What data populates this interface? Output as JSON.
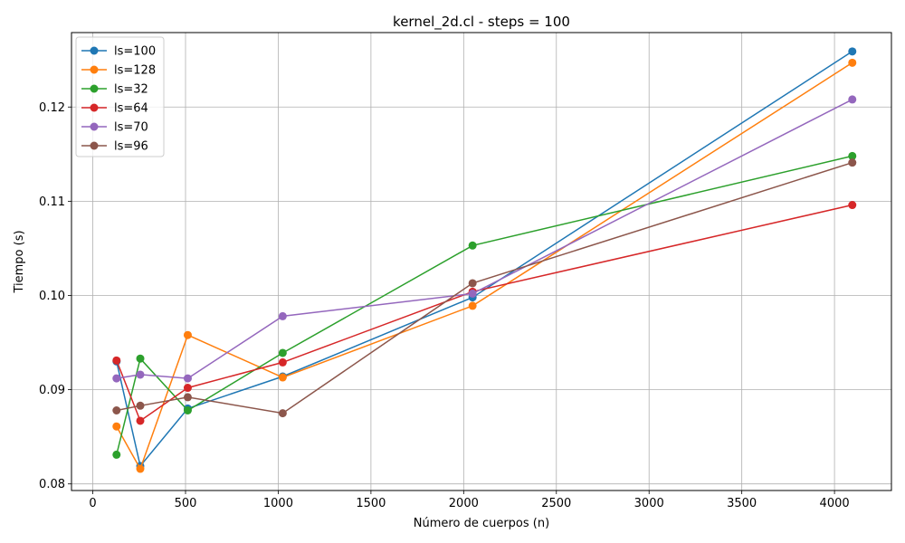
{
  "chart_data": {
    "type": "line",
    "title": "kernel_2d.cl - steps = 100",
    "xlabel": "Número de cuerpos (n)",
    "ylabel": "Tiempo (s)",
    "xlim": [
      -115,
      4307
    ],
    "ylim": [
      0.0793,
      0.1279
    ],
    "xticks": [
      0,
      500,
      1000,
      1500,
      2000,
      2500,
      3000,
      3500,
      4000
    ],
    "yticks": [
      0.08,
      0.09,
      0.1,
      0.11,
      0.12
    ],
    "ytick_labels": [
      "0.08",
      "0.09",
      "0.10",
      "0.11",
      "0.12"
    ],
    "grid": true,
    "legend_position": "top-left",
    "series": [
      {
        "name": "ls=100",
        "color": "#1f77b4",
        "x": [
          128,
          256,
          512,
          1024,
          2048,
          4096
        ],
        "y": [
          0.093,
          0.0819,
          0.088,
          0.0914,
          0.0998,
          0.1259
        ]
      },
      {
        "name": "ls=128",
        "color": "#ff7f0e",
        "x": [
          128,
          256,
          512,
          1024,
          2048,
          4096
        ],
        "y": [
          0.0861,
          0.0816,
          0.0958,
          0.0913,
          0.0989,
          0.1247
        ]
      },
      {
        "name": "ls=32",
        "color": "#2ca02c",
        "x": [
          128,
          256,
          512,
          1024,
          2048,
          4096
        ],
        "y": [
          0.0831,
          0.0933,
          0.0878,
          0.0939,
          0.1053,
          0.1148
        ]
      },
      {
        "name": "ls=64",
        "color": "#d62728",
        "x": [
          128,
          256,
          512,
          1024,
          2048,
          4096
        ],
        "y": [
          0.0931,
          0.0867,
          0.0902,
          0.0929,
          0.1004,
          0.1096
        ]
      },
      {
        "name": "ls=70",
        "color": "#9467bd",
        "x": [
          128,
          256,
          512,
          1024,
          2048,
          4096
        ],
        "y": [
          0.0912,
          0.0916,
          0.0912,
          0.0978,
          0.1002,
          0.1208
        ]
      },
      {
        "name": "ls=96",
        "color": "#8c564b",
        "x": [
          128,
          256,
          512,
          1024,
          2048,
          4096
        ],
        "y": [
          0.0878,
          0.0883,
          0.0892,
          0.0875,
          0.1013,
          0.1141
        ]
      }
    ]
  }
}
